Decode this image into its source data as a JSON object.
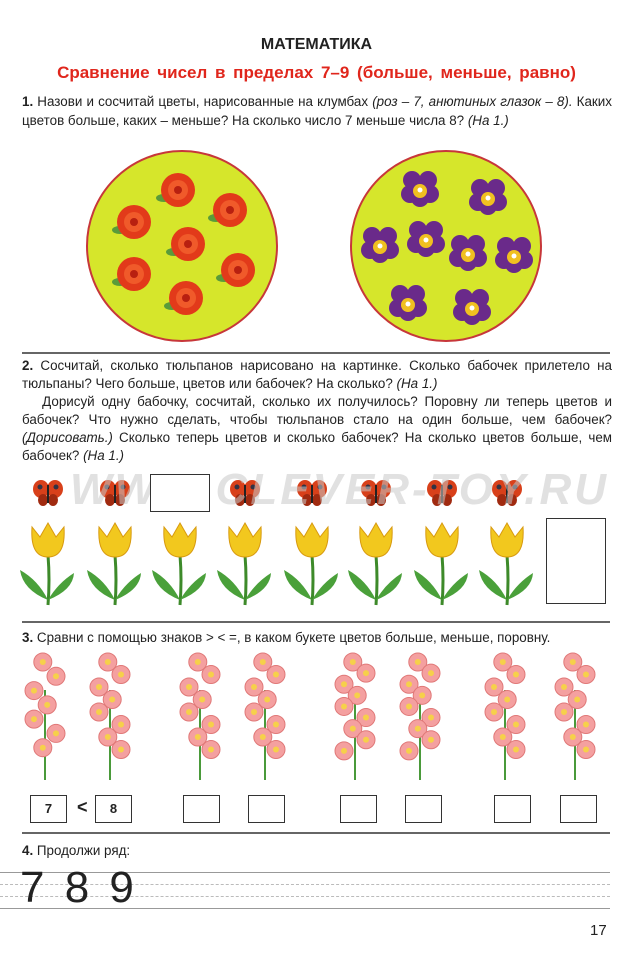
{
  "header": {
    "title": "МАТЕМАТИКА",
    "subtitle": "Сравнение чисел в пределах 7–9 (больше, меньше, равно)"
  },
  "task1": {
    "num": "1.",
    "text": " Назови и сосчитай цветы, нарисованные на клумбах ",
    "hint1": "(роз – 7, анютиных глазок – 8).",
    "text2": " Каких цветов больше, каких – меньше? На сколько число 7 меньше числа 8? ",
    "hint2": "(На 1.)",
    "roses": 7,
    "pansies": 8
  },
  "task2": {
    "num": "2.",
    "text": " Сосчитай, сколько тюльпанов нарисовано на картинке. Сколько бабочек прилетело на тюльпаны? Чего больше, цветов или бабочек? На сколько? ",
    "hint1": "(На 1.)",
    "text2": "Дорисуй одну бабочку, сосчитай, сколько их получилось? Поровну ли теперь цветов и бабочек? Что нужно сделать, чтобы тюльпанов стало на один больше, чем бабочек? ",
    "hint2": "(Дорисовать.)",
    "text3": " Сколько теперь цветов и сколько бабочек? На сколько цветов больше, чем бабочек? ",
    "hint3": "(На 1.)",
    "tulips": 8,
    "butterflies": 7
  },
  "watermark": "WWW.CLEVER-TOY.RU",
  "task3": {
    "num": "3.",
    "text": " Сравни с помощью знаков  > < =, в каком букете цветов больше, меньше, поровну.",
    "example": {
      "left": "7",
      "sign": "<",
      "right": "8"
    }
  },
  "task4": {
    "num": "4.",
    "text": " Продолжи ряд:",
    "sequence": "7 8 9"
  },
  "page_number": "17",
  "colors": {
    "accent": "#e0261c",
    "flowerbed": "#d6e62b"
  }
}
